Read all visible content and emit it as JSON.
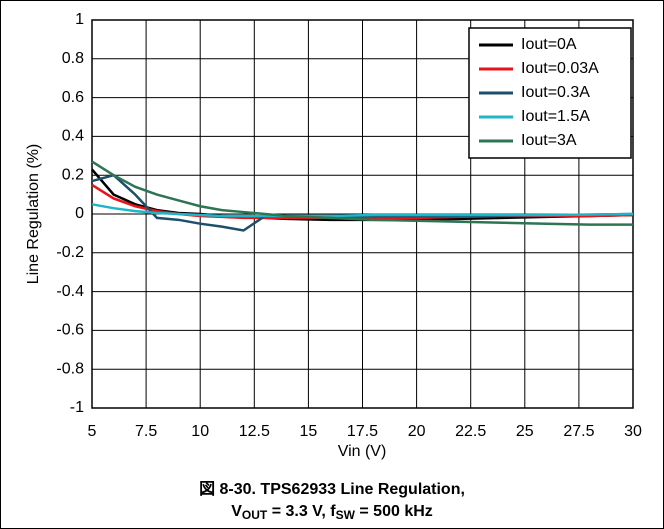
{
  "chart_data": {
    "type": "line",
    "x_label": "Vin (V)",
    "y_label": "Line Regulation (%)",
    "caption": {
      "line1": "図 8-30. TPS62933 Line Regulation,",
      "line2": [
        "V",
        "OUT",
        " = 3.3 V, f",
        "SW",
        " = 500 kHz"
      ]
    },
    "x": [
      5,
      6,
      7,
      8,
      9,
      10,
      11,
      12,
      13,
      14,
      16,
      18,
      20,
      22,
      24,
      26,
      28,
      30
    ],
    "series": [
      {
        "name": "Iout=0A",
        "color": "#000000",
        "values": [
          0.23,
          0.1,
          0.05,
          0.02,
          0.005,
          0,
          -0.01,
          -0.015,
          -0.02,
          -0.025,
          -0.03,
          -0.03,
          -0.03,
          -0.025,
          -0.02,
          -0.015,
          -0.01,
          -0.005
        ]
      },
      {
        "name": "Iout=0.03A",
        "color": "#e8141b",
        "values": [
          0.15,
          0.08,
          0.04,
          0.015,
          0,
          -0.01,
          -0.015,
          -0.02,
          -0.02,
          -0.02,
          -0.02,
          -0.02,
          -0.02,
          -0.015,
          -0.01,
          -0.01,
          -0.01,
          -0.005
        ]
      },
      {
        "name": "Iout=0.3A",
        "color": "#1d4f6b",
        "values": [
          0.17,
          0.2,
          0.1,
          -0.02,
          -0.03,
          -0.05,
          -0.065,
          -0.085,
          -0.01,
          -0.01,
          -0.01,
          -0.01,
          -0.01,
          -0.01,
          -0.008,
          -0.005,
          -0.003,
          0
        ]
      },
      {
        "name": "Iout=1.5A",
        "color": "#1fb5c9",
        "values": [
          0.05,
          0.03,
          0.015,
          0.005,
          0,
          -0.005,
          -0.01,
          -0.01,
          -0.01,
          -0.01,
          -0.01,
          -0.005,
          -0.005,
          -0.005,
          -0.005,
          -0.005,
          -0.003,
          0
        ]
      },
      {
        "name": "Iout=3A",
        "color": "#2e7554",
        "values": [
          0.27,
          0.2,
          0.14,
          0.1,
          0.07,
          0.04,
          0.02,
          0.01,
          0,
          -0.01,
          -0.02,
          -0.03,
          -0.035,
          -0.04,
          -0.045,
          -0.05,
          -0.055,
          -0.055
        ]
      }
    ],
    "xlim": [
      5,
      30
    ],
    "xticks": [
      5,
      7.5,
      10,
      12.5,
      15,
      17.5,
      20,
      22.5,
      25,
      27.5,
      30
    ],
    "ylim": [
      -1,
      1
    ],
    "yticks": [
      1,
      0.8,
      0.6,
      0.4,
      0.2,
      0,
      -0.2,
      -0.4,
      -0.6,
      -0.8,
      -1
    ],
    "grid": true,
    "legend": "upper right"
  }
}
